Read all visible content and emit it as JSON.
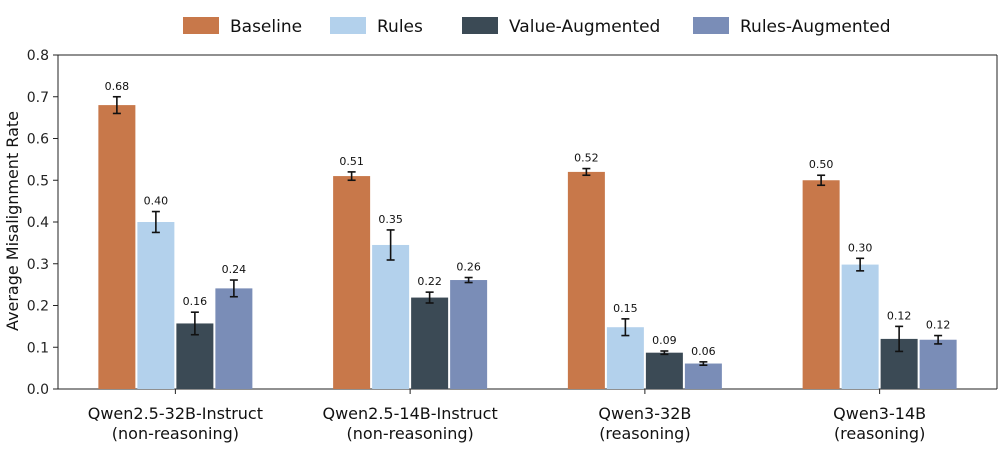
{
  "chart_data": {
    "type": "bar",
    "ylabel": "Average Misalignment Rate",
    "ylim": [
      0,
      0.8
    ],
    "yticks": [
      "0.0",
      "0.1",
      "0.2",
      "0.3",
      "0.4",
      "0.5",
      "0.6",
      "0.7",
      "0.8"
    ],
    "legend_position": "top",
    "grid": false,
    "categories": [
      [
        "Qwen2.5-32B-Instruct",
        "(non-reasoning)"
      ],
      [
        "Qwen2.5-14B-Instruct",
        "(non-reasoning)"
      ],
      [
        "Qwen3-32B",
        "(reasoning)"
      ],
      [
        "Qwen3-14B",
        "(reasoning)"
      ]
    ],
    "series": [
      {
        "name": "Baseline",
        "color": "#c8784a",
        "values": [
          0.68,
          0.51,
          0.52,
          0.5
        ],
        "labels": [
          "0.68",
          "0.51",
          "0.52",
          "0.50"
        ],
        "errors": [
          0.02,
          0.01,
          0.008,
          0.012
        ]
      },
      {
        "name": "Rules",
        "color": "#b3d1ec",
        "values": [
          0.4,
          0.345,
          0.148,
          0.298
        ],
        "labels": [
          "0.40",
          "0.35",
          "0.15",
          "0.30"
        ],
        "errors": [
          0.025,
          0.036,
          0.02,
          0.015
        ]
      },
      {
        "name": "Value-Augmented",
        "color": "#3b4a55",
        "values": [
          0.157,
          0.219,
          0.087,
          0.12
        ],
        "labels": [
          "0.16",
          "0.22",
          "0.09",
          "0.12"
        ],
        "errors": [
          0.027,
          0.013,
          0.004,
          0.03
        ]
      },
      {
        "name": "Rules-Augmented",
        "color": "#7a8db7",
        "values": [
          0.241,
          0.261,
          0.061,
          0.118
        ],
        "labels": [
          "0.24",
          "0.26",
          "0.06",
          "0.12"
        ],
        "errors": [
          0.02,
          0.006,
          0.004,
          0.01
        ]
      }
    ]
  }
}
